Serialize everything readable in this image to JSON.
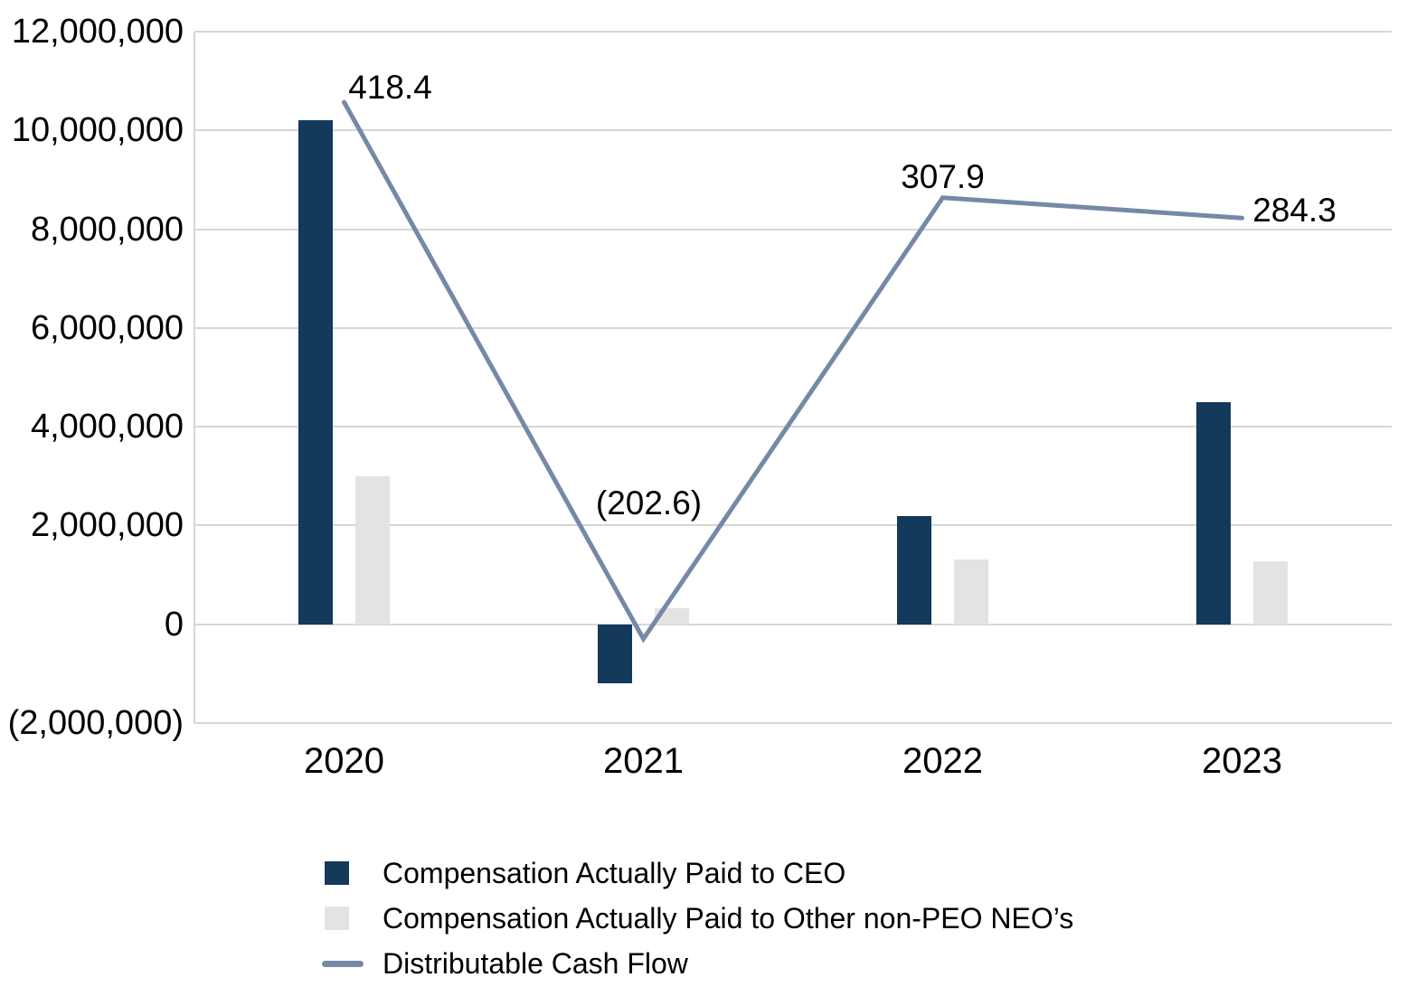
{
  "chart_data": {
    "type": "combo-bar-line",
    "title": "",
    "xlabel": "",
    "ylabel": "",
    "grid": true,
    "legend_position": "bottom-left",
    "categories": [
      "2020",
      "2021",
      "2022",
      "2023"
    ],
    "series": [
      {
        "name": "Compensation Actually Paid to CEO",
        "type": "bar",
        "axis": "primary",
        "color_key": "ceo_bar",
        "values": [
          10200000,
          -1200000,
          2200000,
          4500000
        ]
      },
      {
        "name": "Compensation Actually Paid to Other non-PEO NEO’s",
        "type": "bar",
        "axis": "primary",
        "color_key": "neo_bar",
        "values": [
          3000000,
          330000,
          1310000,
          1280000
        ]
      },
      {
        "name": "Distributable Cash Flow",
        "type": "line",
        "axis": "secondary",
        "color_key": "dcf_line",
        "values": [
          418.4,
          -202.6,
          307.9,
          284.3
        ],
        "point_labels": [
          "418.4",
          "(202.6)",
          "307.9",
          "284.3"
        ],
        "label_offsets": [
          [
            51,
            -16
          ],
          [
            6,
            -150
          ],
          [
            0,
            -23
          ],
          [
            58,
            -8
          ]
        ]
      }
    ],
    "primary_axis": {
      "min": -2000000,
      "max": 12000000,
      "tick_step": 2000000,
      "tick_labels_top_to_bottom": [
        "12,000,000",
        "10,000,000",
        "8,000,000",
        "6,000,000",
        "4,000,000",
        "2,000,000",
        "0",
        "(2,000,000)"
      ]
    },
    "secondary_axis": {
      "min": -300,
      "max": 500,
      "visible": false
    }
  },
  "x_axis": {
    "labels": [
      "2020",
      "2021",
      "2022",
      "2023"
    ]
  },
  "legend": {
    "items": [
      {
        "label": "Compensation Actually Paid to CEO",
        "swatch": "square",
        "color_key": "ceo_bar"
      },
      {
        "label": "Compensation Actually Paid to Other non-PEO NEO’s",
        "swatch": "square",
        "color_key": "neo_bar"
      },
      {
        "label": "Distributable Cash Flow",
        "swatch": "line",
        "color_key": "dcf_line"
      }
    ]
  },
  "colors": {
    "ceo_bar": "#13395B",
    "neo_bar": "#E3E3E3",
    "dcf_line": "#7589A7",
    "gridline": "#D6D6D6",
    "text": "#000000",
    "background": "#FFFFFF"
  }
}
